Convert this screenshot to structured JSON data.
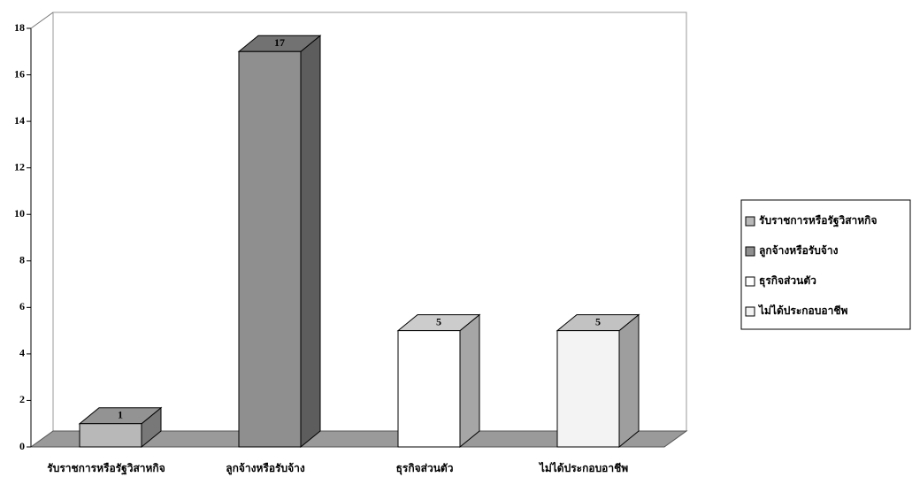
{
  "chart_data": {
    "type": "bar3d",
    "categories": [
      "รับราชการหรือรัฐวิสาหกิจ",
      "ลูกจ้างหรือรับจ้าง",
      "ธุรกิจส่วนตัว",
      "ไม่ได้ประกอบอาชีพ"
    ],
    "values": [
      1,
      17,
      5,
      5
    ],
    "colors": [
      "#b8b8b8",
      "#8f8f8f",
      "#ffffff",
      "#f3f3f3"
    ],
    "ylim": [
      0,
      18
    ],
    "yticks": [
      0,
      2,
      4,
      6,
      8,
      10,
      12,
      14,
      16,
      18
    ],
    "legend": "right"
  }
}
